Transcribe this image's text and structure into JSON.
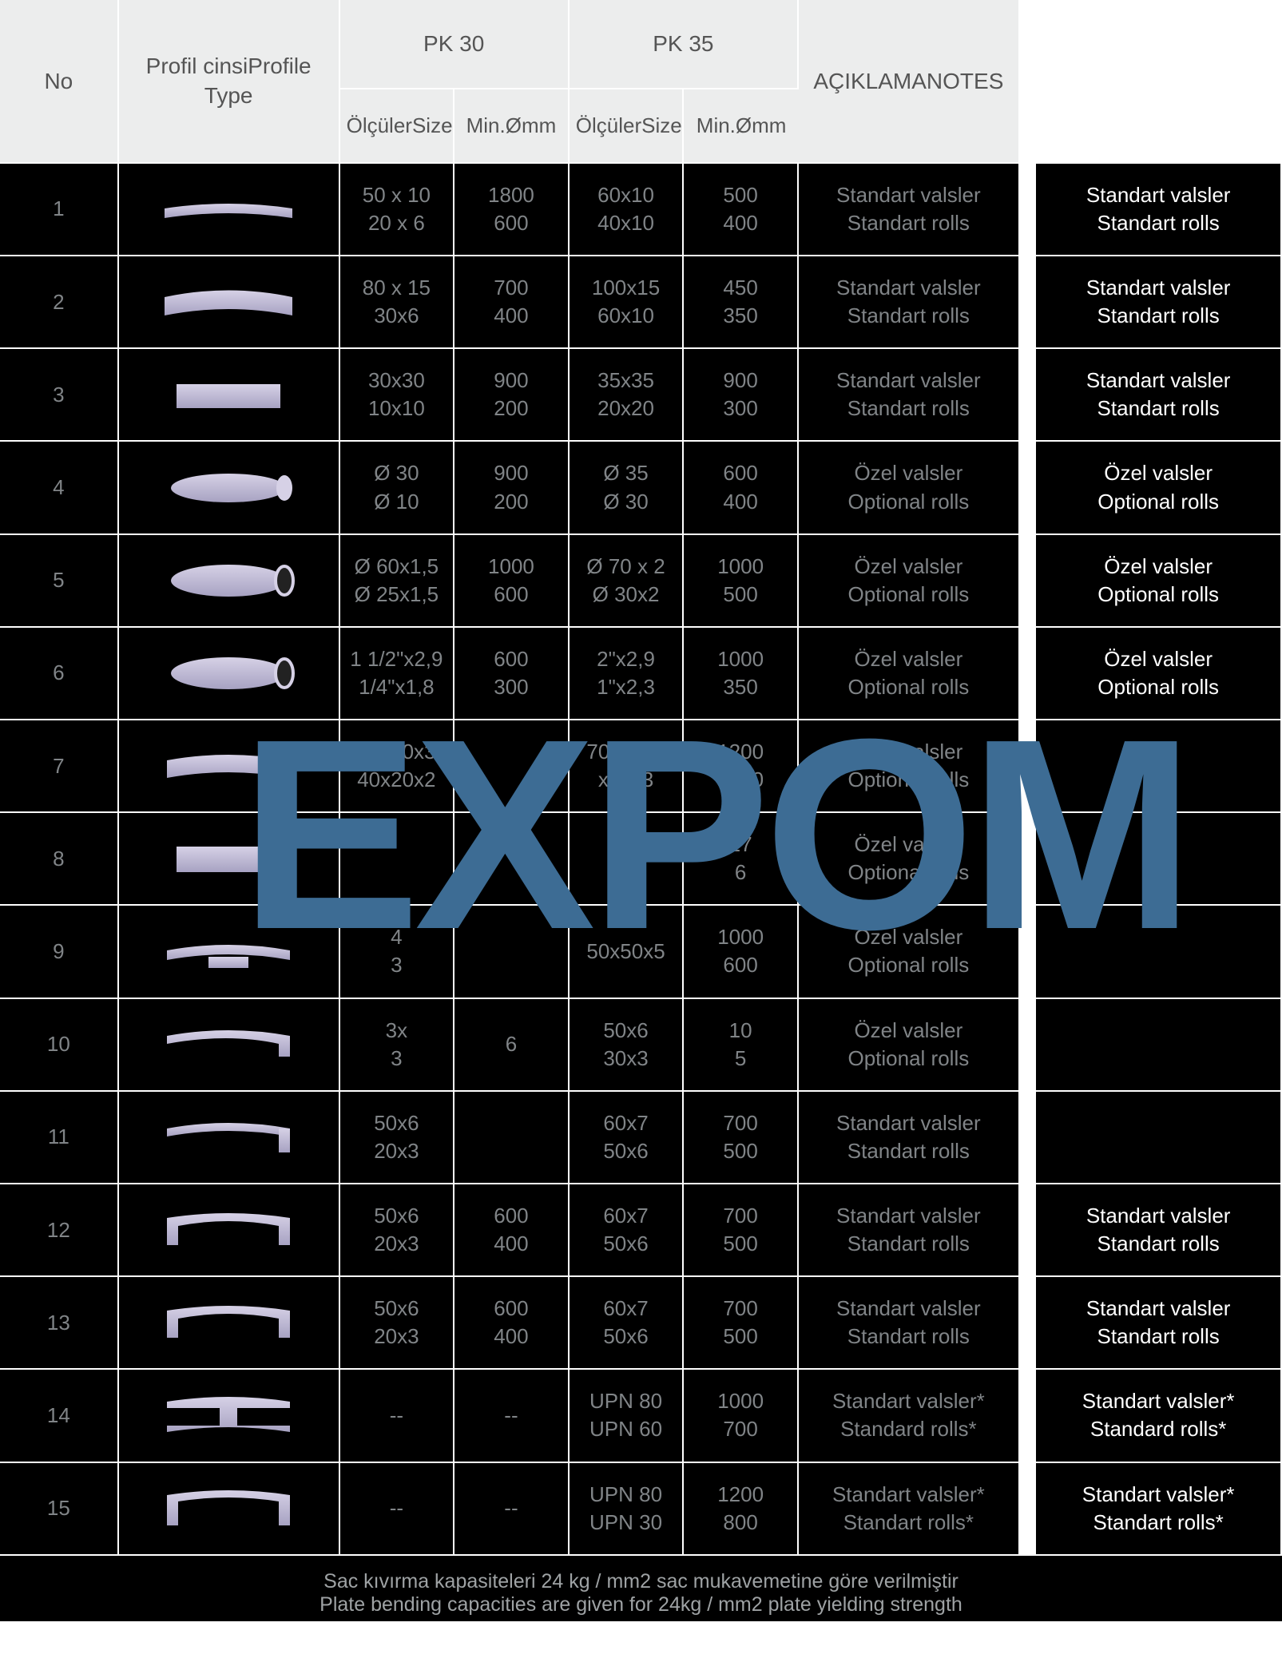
{
  "cols": {
    "no": "No",
    "profile_tr": "Profil cinsi",
    "profile_en": "Profile Type",
    "pk30": "PK 30",
    "pk35": "PK 35",
    "size_tr": "Ölçüler",
    "size_en": "Size",
    "min": "Min.",
    "mm": "Ømm",
    "notes_tr": "AÇIKLAMA",
    "notes_en": "NOTES"
  },
  "rows": [
    {
      "no": "1",
      "shape": "flatbar",
      "p30s": [
        "50 x 10",
        "20 x 6"
      ],
      "p30m": [
        "1800",
        "600"
      ],
      "p35s": [
        "60x10",
        "40x10"
      ],
      "p35m": [
        "500",
        "400"
      ],
      "n": [
        "Standart valsler",
        "Standart rolls"
      ],
      "side": [
        "Standart valsler",
        "Standart rolls"
      ]
    },
    {
      "no": "2",
      "shape": "flatcurve",
      "p30s": [
        "80 x 15",
        "30x6"
      ],
      "p30m": [
        "700",
        "400"
      ],
      "p35s": [
        "100x15",
        "60x10"
      ],
      "p35m": [
        "450",
        "350"
      ],
      "n": [
        "Standart valsler",
        "Standart rolls"
      ],
      "side": [
        "Standart valsler",
        "Standart rolls"
      ]
    },
    {
      "no": "3",
      "shape": "sqbar",
      "p30s": [
        "30x30",
        "10x10"
      ],
      "p30m": [
        "900",
        "200"
      ],
      "p35s": [
        "35x35",
        "20x20"
      ],
      "p35m": [
        "900",
        "300"
      ],
      "n": [
        "Standart valsler",
        "Standart rolls"
      ],
      "side": [
        "Standart valsler",
        "Standart rolls"
      ]
    },
    {
      "no": "4",
      "shape": "round",
      "p30s": [
        "Ø 30",
        "Ø 10"
      ],
      "p30m": [
        "900",
        "200"
      ],
      "p35s": [
        "Ø 35",
        "Ø 30"
      ],
      "p35m": [
        "600",
        "400"
      ],
      "n": [
        "Özel valsler",
        "Optional rolls"
      ],
      "side": [
        "Özel valsler",
        "Optional rolls"
      ]
    },
    {
      "no": "5",
      "shape": "pipe",
      "p30s": [
        "Ø 60x1,5",
        "Ø 25x1,5"
      ],
      "p30m": [
        "1000",
        "600"
      ],
      "p35s": [
        "Ø 70 x 2",
        "Ø 30x2"
      ],
      "p35m": [
        "1000",
        "500"
      ],
      "n": [
        "Özel valsler",
        "Optional rolls"
      ],
      "side": [
        "Özel valsler",
        "Optional rolls"
      ]
    },
    {
      "no": "6",
      "shape": "pipe",
      "p30s": [
        "1 1/2\"x2,9",
        "1/4\"x1,8"
      ],
      "p30m": [
        "600",
        "300"
      ],
      "p35s": [
        "2\"x2,9",
        "1\"x2,3"
      ],
      "p35m": [
        "1000",
        "350"
      ],
      "n": [
        "Özel valsler",
        "Optional rolls"
      ],
      "side": [
        "Özel valsler",
        "Optional rolls"
      ]
    },
    {
      "no": "7",
      "shape": "recttube",
      "p30s": [
        "50x30x3",
        "40x20x2"
      ],
      "p30m": [
        "",
        ""
      ],
      "p35s": [
        "70x30x2",
        "x40x3"
      ],
      "p35m": [
        "1200",
        "1200"
      ],
      "n": [
        "Özel valsler",
        "Optional rolls"
      ],
      "side": [
        "",
        ""
      ]
    },
    {
      "no": "8",
      "shape": "sqtube",
      "p30s": [
        "",
        ""
      ],
      "p30m": [
        "",
        ""
      ],
      "p35s": [
        "x",
        "x3"
      ],
      "p35m": [
        "17",
        "6"
      ],
      "n": [
        "Özel valsler",
        "Optional rolls"
      ],
      "side": [
        "",
        ""
      ]
    },
    {
      "no": "9",
      "shape": "tsec",
      "p30s": [
        "4",
        "3"
      ],
      "p30m": [
        "",
        ""
      ],
      "p35s": [
        "50x50x5",
        ""
      ],
      "p35m": [
        "1000",
        "600"
      ],
      "n": [
        "Özel valsler",
        "Optional rolls"
      ],
      "side": [
        "",
        ""
      ]
    },
    {
      "no": "10",
      "shape": "angle",
      "p30s": [
        "3x",
        "3"
      ],
      "p30m": [
        "6",
        ""
      ],
      "p35s": [
        "50x6",
        "30x3"
      ],
      "p35m": [
        "10",
        "5"
      ],
      "n": [
        "Özel valsler",
        "Optional rolls"
      ],
      "side": [
        "",
        ""
      ]
    },
    {
      "no": "11",
      "shape": "angle2",
      "p30s": [
        "50x6",
        "20x3"
      ],
      "p30m": [
        "",
        ""
      ],
      "p35s": [
        "60x7",
        "50x6"
      ],
      "p35m": [
        "700",
        "500"
      ],
      "n": [
        "Standart valsler",
        "Standart rolls"
      ],
      "side": [
        "",
        ""
      ]
    },
    {
      "no": "12",
      "shape": "channel",
      "p30s": [
        "50x6",
        "20x3"
      ],
      "p30m": [
        "600",
        "400"
      ],
      "p35s": [
        "60x7",
        "50x6"
      ],
      "p35m": [
        "700",
        "500"
      ],
      "n": [
        "Standart valsler",
        "Standart rolls"
      ],
      "side": [
        "Standart valsler",
        "Standart rolls"
      ]
    },
    {
      "no": "13",
      "shape": "channel",
      "p30s": [
        "50x6",
        "20x3"
      ],
      "p30m": [
        "600",
        "400"
      ],
      "p35s": [
        "60x7",
        "50x6"
      ],
      "p35m": [
        "700",
        "500"
      ],
      "n": [
        "Standart valsler",
        "Standart rolls"
      ],
      "side": [
        "Standart valsler",
        "Standart rolls"
      ]
    },
    {
      "no": "14",
      "shape": "ibeam",
      "p30s": [
        "--",
        ""
      ],
      "p30m": [
        "--",
        ""
      ],
      "p35s": [
        "UPN 80",
        "UPN 60"
      ],
      "p35m": [
        "1000",
        "700"
      ],
      "n": [
        "Standart valsler*",
        "Standard rolls*"
      ],
      "side": [
        "Standart valsler*",
        "Standard rolls*"
      ]
    },
    {
      "no": "15",
      "shape": "ubeam",
      "p30s": [
        "--",
        ""
      ],
      "p30m": [
        "--",
        ""
      ],
      "p35s": [
        "UPN 80",
        "UPN 30"
      ],
      "p35m": [
        "1200",
        "800"
      ],
      "n": [
        "Standart valsler*",
        "Standart rolls*"
      ],
      "side": [
        "Standart valsler*",
        "Standart rolls*"
      ]
    }
  ],
  "footer": {
    "tr": "Sac kıvırma kapasiteleri 24 kg / mm2 sac mukavemetine göre verilmiştir",
    "en": "Plate bending capacities are given for 24kg / mm2 plate yielding strength"
  },
  "watermark": "EXPOM",
  "widths": {
    "no": 145,
    "profile": 270,
    "p30s": 140,
    "p30m": 140,
    "p35s": 140,
    "p35m": 140,
    "notes": 270,
    "side": 320
  },
  "colors": {
    "header_bg": "#eceded",
    "header_text": "#555555",
    "body_bg": "#000000",
    "body_text": "#808487",
    "side_text": "#ffffff",
    "border": "#ffffff",
    "wm": "#3d6c94"
  },
  "shapefill": "#a7a2c2",
  "shapehi": "#d6d1e6"
}
